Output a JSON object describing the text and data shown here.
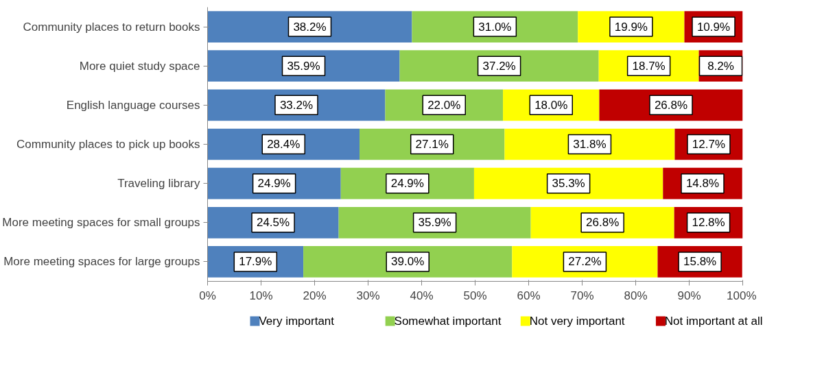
{
  "chart_data": {
    "type": "bar",
    "orientation": "horizontal",
    "stacked": true,
    "categories": [
      "Community places to return books",
      "More quiet study space",
      "English language courses",
      "Community places to pick up books",
      "Traveling library",
      "More meeting spaces for small groups",
      "More meeting spaces for large groups"
    ],
    "series": [
      {
        "name": "Very important",
        "color": "#4f81bd",
        "values": [
          38.2,
          35.9,
          33.2,
          28.4,
          24.9,
          24.5,
          17.9
        ],
        "value_labels": [
          "38.2%",
          "35.9%",
          "33.2%",
          "28.4%",
          "24.9%",
          "24.5%",
          "17.9%"
        ]
      },
      {
        "name": "Somewhat important",
        "color": "#92d050",
        "values": [
          31.0,
          37.2,
          22.0,
          27.1,
          24.9,
          35.9,
          39.0
        ],
        "value_labels": [
          "31.0%",
          "37.2%",
          "22.0%",
          "27.1%",
          "24.9%",
          "35.9%",
          "39.0%"
        ]
      },
      {
        "name": "Not very important",
        "color": "#ffff00",
        "values": [
          19.9,
          18.7,
          18.0,
          31.8,
          35.3,
          26.8,
          27.2
        ],
        "value_labels": [
          "19.9%",
          "18.7%",
          "18.0%",
          "31.8%",
          "35.3%",
          "26.8%",
          "27.2%"
        ]
      },
      {
        "name": "Not important at all",
        "color": "#c00000",
        "values": [
          10.9,
          8.2,
          26.8,
          12.7,
          14.8,
          12.8,
          15.8
        ],
        "value_labels": [
          "10.9%",
          "8.2%",
          "26.8%",
          "12.7%",
          "14.8%",
          "12.8%",
          "15.8%"
        ]
      }
    ],
    "xlim": [
      0,
      100
    ],
    "xticks": [
      {
        "value": 0,
        "label": "0%"
      },
      {
        "value": 10,
        "label": "10%"
      },
      {
        "value": 20,
        "label": "20%"
      },
      {
        "value": 30,
        "label": "30%"
      },
      {
        "value": 40,
        "label": "40%"
      },
      {
        "value": 50,
        "label": "50%"
      },
      {
        "value": 60,
        "label": "60%"
      },
      {
        "value": 70,
        "label": "70%"
      },
      {
        "value": 80,
        "label": "80%"
      },
      {
        "value": 90,
        "label": "90%"
      },
      {
        "value": 100,
        "label": "100%"
      }
    ],
    "grid": false,
    "legend": "bottom"
  }
}
